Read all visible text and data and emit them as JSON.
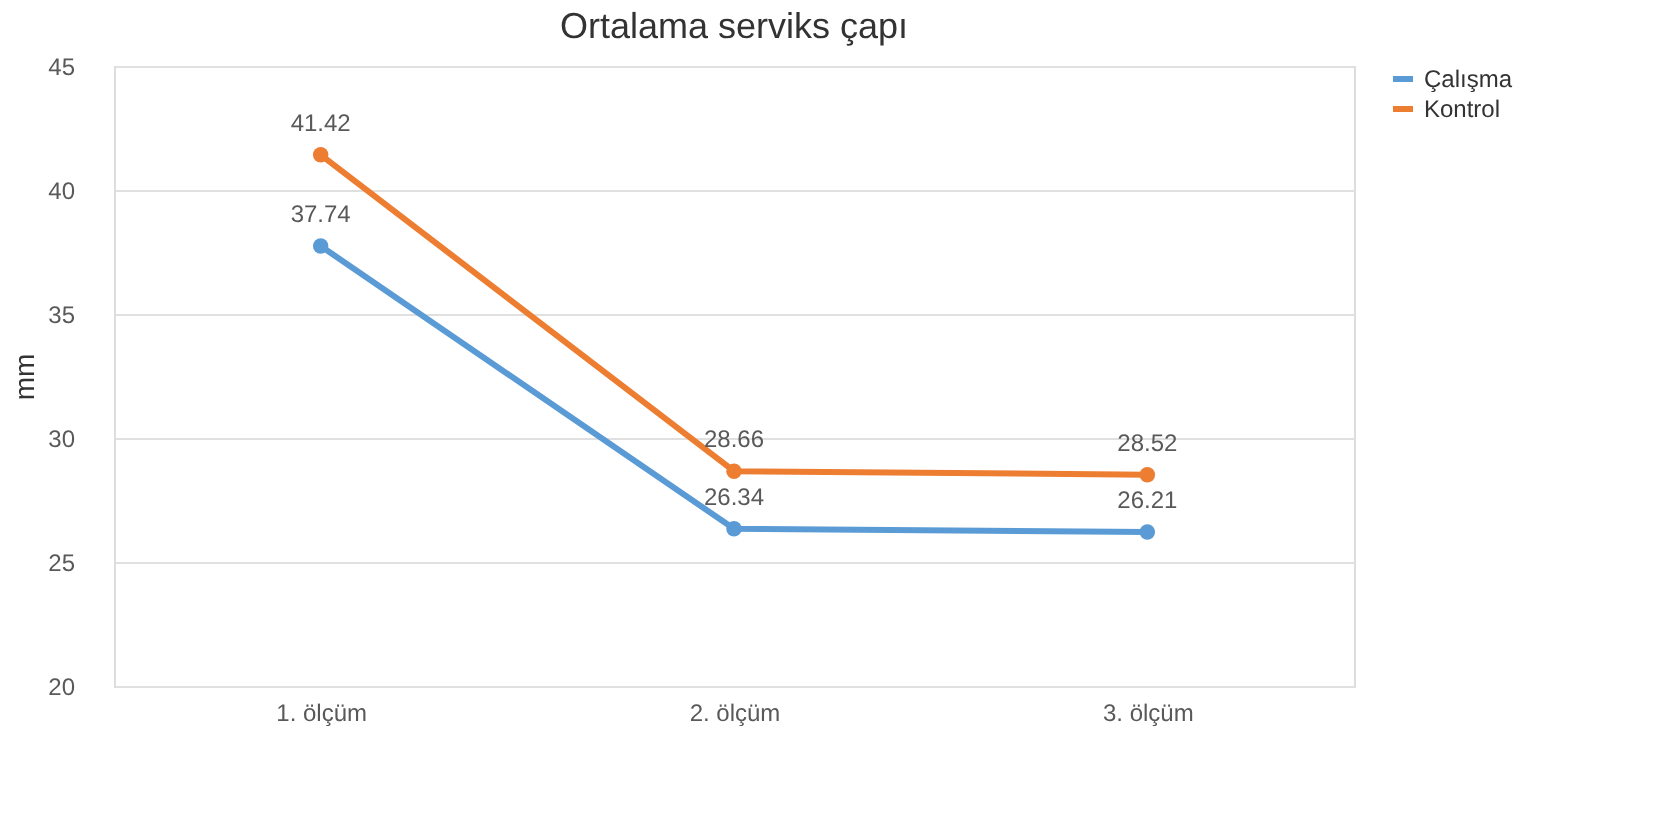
{
  "chart_data": {
    "type": "line",
    "title": "Ortalama serviks çapı",
    "ylabel": "mm",
    "categories": [
      "1. ölçüm",
      "2. ölçüm",
      "3. ölçüm"
    ],
    "series": [
      {
        "name": "Çalışma",
        "color": "#5b9bd5",
        "values": [
          37.74,
          26.34,
          26.21
        ]
      },
      {
        "name": "Kontrol",
        "color": "#ed7d31",
        "values": [
          41.42,
          28.66,
          28.52
        ]
      }
    ],
    "ylim": [
      20,
      45
    ],
    "yticks": [
      20,
      25,
      30,
      35,
      40,
      45
    ],
    "grid": "y",
    "legend": "right",
    "marker": "circle",
    "line_style": "solid",
    "data_labels": true
  }
}
